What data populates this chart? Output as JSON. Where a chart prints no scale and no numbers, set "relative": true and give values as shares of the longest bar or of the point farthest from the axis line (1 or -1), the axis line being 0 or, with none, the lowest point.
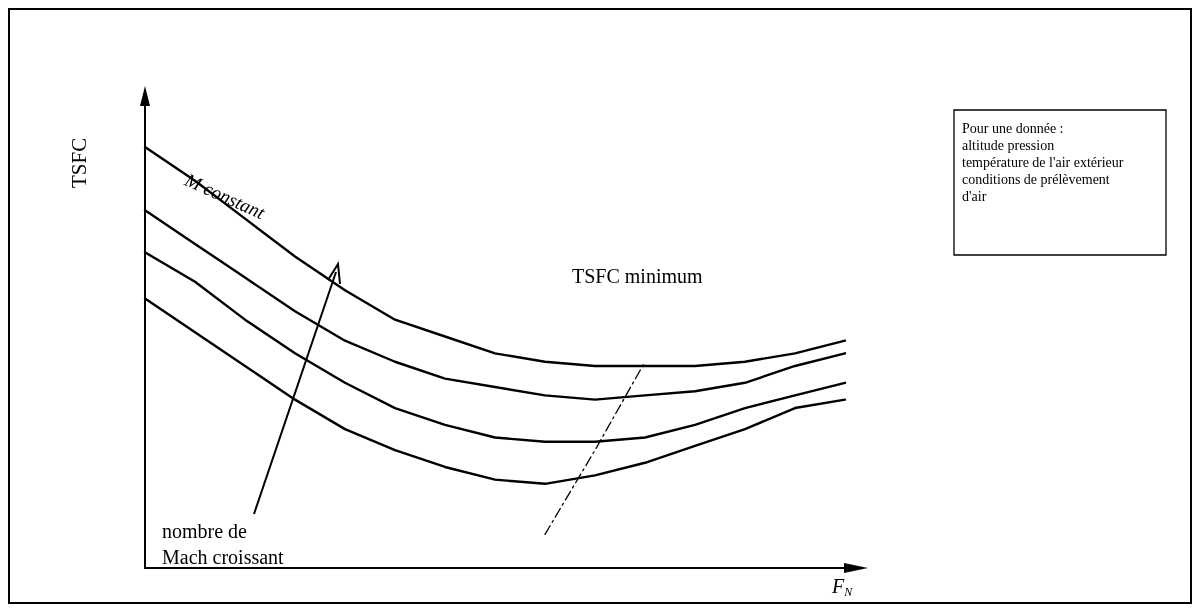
{
  "chart_data": {
    "type": "line",
    "relative": true,
    "xlabel": "F$_{N}$",
    "ylabel": "TSFC",
    "categories": [
      null,
      null,
      null,
      null,
      null,
      null,
      null,
      null,
      null,
      null,
      null,
      null,
      null,
      null,
      null
    ],
    "series": [
      {
        "color": "#000000",
        "values": [
          1,
          0.92,
          0.83,
          0.74,
          0.66,
          0.59,
          0.55,
          0.51,
          0.49,
          0.48,
          0.48,
          0.48,
          0.49,
          0.51,
          0.54
        ]
      },
      {
        "color": "#000000",
        "values": [
          0.85,
          0.77,
          0.69,
          0.61,
          0.54,
          0.49,
          0.45,
          0.43,
          0.41,
          0.4,
          0.41,
          0.42,
          0.44,
          0.48,
          0.51
        ]
      },
      {
        "color": "#000000",
        "values": [
          0.75,
          0.68,
          0.59,
          0.51,
          0.44,
          0.38,
          0.34,
          0.31,
          0.3,
          0.3,
          0.31,
          0.34,
          0.38,
          0.41,
          0.44
        ]
      },
      {
        "color": "#000000",
        "values": [
          0.64,
          0.56,
          0.48,
          0.4,
          0.33,
          0.28,
          0.24,
          0.21,
          0.2,
          0.22,
          0.25,
          0.29,
          0.33,
          0.38,
          0.4
        ]
      },
      {
        "color": "#000000",
        "line_style": "dashed",
        "values": [
          null,
          null,
          null,
          null,
          null,
          null,
          null,
          null,
          0.08,
          0.28,
          0.49,
          null,
          null,
          null,
          null
        ]
      }
    ],
    "annotations": [
      "M constant",
      "nombre de\nMach croissant",
      "TSFC minimum",
      "Pour une donnée :\naltitude pression\ntempérature de l'air extérieur\nconditions de prélèvement\nd'air"
    ],
    "grid": false,
    "marker": "none",
    "line_style": "solid"
  }
}
